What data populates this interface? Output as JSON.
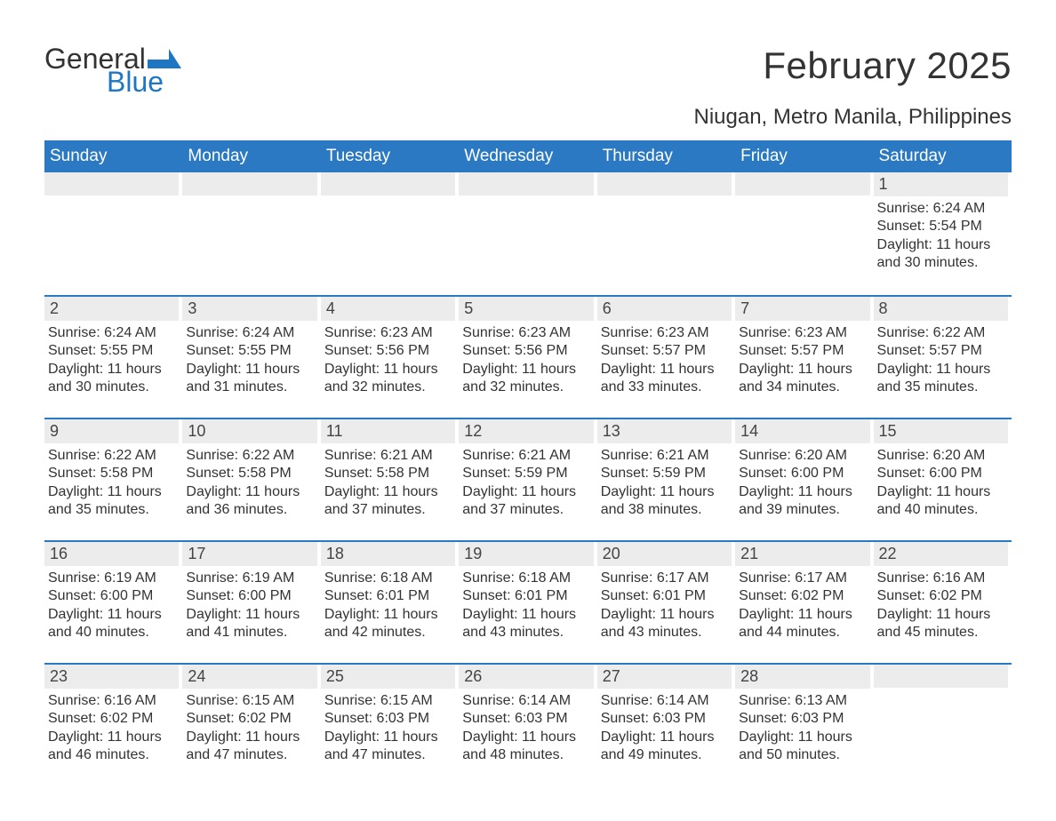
{
  "logo": {
    "text1": "General",
    "text2": "Blue",
    "color_general": "#333333",
    "color_blue": "#1f77c4",
    "flag_color": "#1f77c4"
  },
  "title": "February 2025",
  "location": "Niugan, Metro Manila, Philippines",
  "colors": {
    "header_bg": "#2b79c2",
    "header_text": "#ffffff",
    "daynum_bg": "#ececec",
    "week_divider": "#2b79c2",
    "body_text": "#333333",
    "page_bg": "#ffffff"
  },
  "fonts": {
    "title_pt": 42,
    "location_pt": 24,
    "dow_pt": 19,
    "daynum_pt": 18,
    "body_pt": 16,
    "family": "Arial"
  },
  "days_of_week": [
    "Sunday",
    "Monday",
    "Tuesday",
    "Wednesday",
    "Thursday",
    "Friday",
    "Saturday"
  ],
  "weeks": [
    [
      null,
      null,
      null,
      null,
      null,
      null,
      {
        "n": "1",
        "sunrise": "Sunrise: 6:24 AM",
        "sunset": "Sunset: 5:54 PM",
        "daylight": "Daylight: 11 hours and 30 minutes."
      }
    ],
    [
      {
        "n": "2",
        "sunrise": "Sunrise: 6:24 AM",
        "sunset": "Sunset: 5:55 PM",
        "daylight": "Daylight: 11 hours and 30 minutes."
      },
      {
        "n": "3",
        "sunrise": "Sunrise: 6:24 AM",
        "sunset": "Sunset: 5:55 PM",
        "daylight": "Daylight: 11 hours and 31 minutes."
      },
      {
        "n": "4",
        "sunrise": "Sunrise: 6:23 AM",
        "sunset": "Sunset: 5:56 PM",
        "daylight": "Daylight: 11 hours and 32 minutes."
      },
      {
        "n": "5",
        "sunrise": "Sunrise: 6:23 AM",
        "sunset": "Sunset: 5:56 PM",
        "daylight": "Daylight: 11 hours and 32 minutes."
      },
      {
        "n": "6",
        "sunrise": "Sunrise: 6:23 AM",
        "sunset": "Sunset: 5:57 PM",
        "daylight": "Daylight: 11 hours and 33 minutes."
      },
      {
        "n": "7",
        "sunrise": "Sunrise: 6:23 AM",
        "sunset": "Sunset: 5:57 PM",
        "daylight": "Daylight: 11 hours and 34 minutes."
      },
      {
        "n": "8",
        "sunrise": "Sunrise: 6:22 AM",
        "sunset": "Sunset: 5:57 PM",
        "daylight": "Daylight: 11 hours and 35 minutes."
      }
    ],
    [
      {
        "n": "9",
        "sunrise": "Sunrise: 6:22 AM",
        "sunset": "Sunset: 5:58 PM",
        "daylight": "Daylight: 11 hours and 35 minutes."
      },
      {
        "n": "10",
        "sunrise": "Sunrise: 6:22 AM",
        "sunset": "Sunset: 5:58 PM",
        "daylight": "Daylight: 11 hours and 36 minutes."
      },
      {
        "n": "11",
        "sunrise": "Sunrise: 6:21 AM",
        "sunset": "Sunset: 5:58 PM",
        "daylight": "Daylight: 11 hours and 37 minutes."
      },
      {
        "n": "12",
        "sunrise": "Sunrise: 6:21 AM",
        "sunset": "Sunset: 5:59 PM",
        "daylight": "Daylight: 11 hours and 37 minutes."
      },
      {
        "n": "13",
        "sunrise": "Sunrise: 6:21 AM",
        "sunset": "Sunset: 5:59 PM",
        "daylight": "Daylight: 11 hours and 38 minutes."
      },
      {
        "n": "14",
        "sunrise": "Sunrise: 6:20 AM",
        "sunset": "Sunset: 6:00 PM",
        "daylight": "Daylight: 11 hours and 39 minutes."
      },
      {
        "n": "15",
        "sunrise": "Sunrise: 6:20 AM",
        "sunset": "Sunset: 6:00 PM",
        "daylight": "Daylight: 11 hours and 40 minutes."
      }
    ],
    [
      {
        "n": "16",
        "sunrise": "Sunrise: 6:19 AM",
        "sunset": "Sunset: 6:00 PM",
        "daylight": "Daylight: 11 hours and 40 minutes."
      },
      {
        "n": "17",
        "sunrise": "Sunrise: 6:19 AM",
        "sunset": "Sunset: 6:00 PM",
        "daylight": "Daylight: 11 hours and 41 minutes."
      },
      {
        "n": "18",
        "sunrise": "Sunrise: 6:18 AM",
        "sunset": "Sunset: 6:01 PM",
        "daylight": "Daylight: 11 hours and 42 minutes."
      },
      {
        "n": "19",
        "sunrise": "Sunrise: 6:18 AM",
        "sunset": "Sunset: 6:01 PM",
        "daylight": "Daylight: 11 hours and 43 minutes."
      },
      {
        "n": "20",
        "sunrise": "Sunrise: 6:17 AM",
        "sunset": "Sunset: 6:01 PM",
        "daylight": "Daylight: 11 hours and 43 minutes."
      },
      {
        "n": "21",
        "sunrise": "Sunrise: 6:17 AM",
        "sunset": "Sunset: 6:02 PM",
        "daylight": "Daylight: 11 hours and 44 minutes."
      },
      {
        "n": "22",
        "sunrise": "Sunrise: 6:16 AM",
        "sunset": "Sunset: 6:02 PM",
        "daylight": "Daylight: 11 hours and 45 minutes."
      }
    ],
    [
      {
        "n": "23",
        "sunrise": "Sunrise: 6:16 AM",
        "sunset": "Sunset: 6:02 PM",
        "daylight": "Daylight: 11 hours and 46 minutes."
      },
      {
        "n": "24",
        "sunrise": "Sunrise: 6:15 AM",
        "sunset": "Sunset: 6:02 PM",
        "daylight": "Daylight: 11 hours and 47 minutes."
      },
      {
        "n": "25",
        "sunrise": "Sunrise: 6:15 AM",
        "sunset": "Sunset: 6:03 PM",
        "daylight": "Daylight: 11 hours and 47 minutes."
      },
      {
        "n": "26",
        "sunrise": "Sunrise: 6:14 AM",
        "sunset": "Sunset: 6:03 PM",
        "daylight": "Daylight: 11 hours and 48 minutes."
      },
      {
        "n": "27",
        "sunrise": "Sunrise: 6:14 AM",
        "sunset": "Sunset: 6:03 PM",
        "daylight": "Daylight: 11 hours and 49 minutes."
      },
      {
        "n": "28",
        "sunrise": "Sunrise: 6:13 AM",
        "sunset": "Sunset: 6:03 PM",
        "daylight": "Daylight: 11 hours and 50 minutes."
      },
      null
    ]
  ]
}
